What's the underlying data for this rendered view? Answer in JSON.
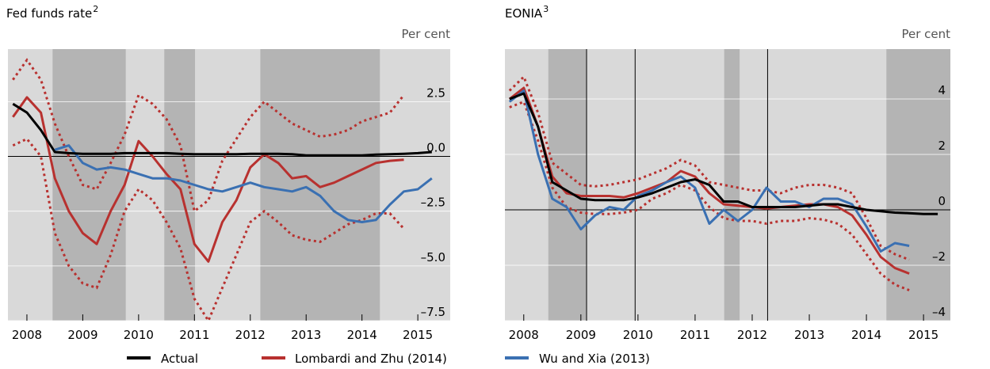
{
  "chart_data": [
    {
      "type": "line",
      "title": "Fed funds rate",
      "title_sup": "2",
      "y_label": "Per cent",
      "xlim": [
        2008.16,
        2016.08
      ],
      "ylim": [
        -7.5,
        4.9
      ],
      "yticks": [
        2.5,
        {
          "value": 0,
          "label": "0.0"
        },
        {
          "value": -2.5,
          "label": "–2.5"
        },
        {
          "value": -5,
          "label": "–5.0"
        },
        {
          "value": -7.5,
          "label": "–7.5"
        }
      ],
      "xticks": [
        {
          "value": 2008.5,
          "label": "2008"
        },
        {
          "value": 2009.5,
          "label": "2009"
        },
        {
          "value": 2010.5,
          "label": "2010"
        },
        {
          "value": 2011.5,
          "label": "2011"
        },
        {
          "value": 2012.5,
          "label": "2012"
        },
        {
          "value": 2013.5,
          "label": "2013"
        },
        {
          "value": 2014.5,
          "label": "2014"
        },
        {
          "value": 2015.5,
          "label": "2015"
        }
      ],
      "shaded": [
        [
          2008.96,
          2010.27
        ],
        [
          2010.96,
          2011.51
        ],
        [
          2012.68,
          2014.82
        ]
      ],
      "x": [
        2008.25,
        2008.5,
        2008.75,
        2009,
        2009.25,
        2009.5,
        2009.75,
        2010,
        2010.25,
        2010.5,
        2010.75,
        2011,
        2011.25,
        2011.5,
        2011.75,
        2012,
        2012.25,
        2012.5,
        2012.75,
        2013,
        2013.25,
        2013.5,
        2013.75,
        2014,
        2014.25,
        2014.5,
        2014.75,
        2015,
        2015.25,
        2015.5,
        2015.75
      ],
      "series": [
        {
          "name": "Actual",
          "color": "#000000",
          "values": [
            2.4,
            2.0,
            1.2,
            0.2,
            0.15,
            0.12,
            0.12,
            0.12,
            0.15,
            0.15,
            0.15,
            0.15,
            0.12,
            0.1,
            0.1,
            0.1,
            0.1,
            0.12,
            0.12,
            0.12,
            0.1,
            0.05,
            0.05,
            0.05,
            0.05,
            0.05,
            0.08,
            0.1,
            0.12,
            0.15,
            0.2
          ]
        },
        {
          "name": "Lombardi and Zhu (2014)",
          "color": "#b8312f",
          "values": [
            1.8,
            2.7,
            2.0,
            -1.0,
            -2.5,
            -3.5,
            -4.0,
            -2.5,
            -1.3,
            0.7,
            0.0,
            -0.8,
            -1.5,
            -4.0,
            -4.8,
            -3.0,
            -2.0,
            -0.5,
            0.1,
            -0.3,
            -1.0,
            -0.9,
            -1.4,
            -1.2,
            -0.9,
            -0.6,
            -0.3,
            -0.2,
            -0.15,
            null,
            null
          ],
          "upper": [
            3.5,
            4.4,
            3.5,
            1.5,
            0.0,
            -1.3,
            -1.5,
            -0.3,
            1.0,
            2.8,
            2.4,
            1.7,
            0.5,
            -2.5,
            -2.0,
            -0.2,
            0.8,
            1.8,
            2.5,
            2.0,
            1.5,
            1.2,
            0.9,
            1.0,
            1.2,
            1.6,
            1.8,
            2.0,
            2.8,
            null,
            null
          ],
          "lower": [
            0.5,
            0.8,
            0.0,
            -3.5,
            -5.0,
            -5.8,
            -6.0,
            -4.5,
            -2.5,
            -1.5,
            -2.0,
            -3.0,
            -4.2,
            -6.5,
            -7.5,
            -6.0,
            -4.5,
            -3.0,
            -2.5,
            -3.0,
            -3.6,
            -3.8,
            -3.9,
            -3.5,
            -3.1,
            -2.9,
            -2.6,
            -2.6,
            -3.3,
            null,
            null
          ]
        },
        {
          "name": "Wu and Xia (2013)",
          "color": "#3a70b2",
          "values": [
            null,
            null,
            null,
            0.3,
            0.5,
            -0.3,
            -0.6,
            -0.5,
            -0.6,
            -0.8,
            -1.0,
            -1.0,
            -1.1,
            -1.3,
            -1.5,
            -1.6,
            -1.4,
            -1.2,
            -1.4,
            -1.5,
            -1.6,
            -1.4,
            -1.8,
            -2.5,
            -2.9,
            -3.0,
            -2.9,
            -2.2,
            -1.6,
            -1.5,
            -1.0
          ]
        }
      ]
    },
    {
      "type": "line",
      "title": "EONIA",
      "title_sup": "3",
      "y_label": "Per cent",
      "xlim": [
        2008.17,
        2015.97
      ],
      "ylim": [
        -4,
        5.8
      ],
      "yticks": [
        4,
        2,
        0,
        {
          "value": -2,
          "label": "–2"
        },
        {
          "value": -4,
          "label": "–4"
        }
      ],
      "xticks": [
        {
          "value": 2008.5,
          "label": "2008"
        },
        {
          "value": 2009.5,
          "label": "2009"
        },
        {
          "value": 2010.5,
          "label": "2010"
        },
        {
          "value": 2011.5,
          "label": "2011"
        },
        {
          "value": 2012.5,
          "label": "2012"
        },
        {
          "value": 2013.5,
          "label": "2013"
        },
        {
          "value": 2014.5,
          "label": "2014"
        },
        {
          "value": 2015.5,
          "label": "2015"
        }
      ],
      "shaded": [
        [
          2008.93,
          2009.6
        ],
        [
          2012.01,
          2012.28
        ],
        [
          2014.85,
          2015.97
        ]
      ],
      "vlines": [
        2009.6,
        2010.45,
        2012.77
      ],
      "x": [
        2008.25,
        2008.5,
        2008.75,
        2009,
        2009.25,
        2009.5,
        2009.75,
        2010,
        2010.25,
        2010.5,
        2010.75,
        2011,
        2011.25,
        2011.5,
        2011.75,
        2012,
        2012.25,
        2012.5,
        2012.75,
        2013,
        2013.25,
        2013.5,
        2013.75,
        2014,
        2014.25,
        2014.5,
        2014.75,
        2015,
        2015.25,
        2015.5,
        2015.75
      ],
      "series": [
        {
          "color": "#000000",
          "values": [
            4.0,
            4.2,
            3.0,
            1.0,
            0.7,
            0.4,
            0.35,
            0.35,
            0.35,
            0.45,
            0.6,
            0.8,
            1.0,
            1.1,
            0.9,
            0.3,
            0.3,
            0.1,
            0.1,
            0.1,
            0.1,
            0.15,
            0.2,
            0.2,
            0.1,
            0.0,
            -0.05,
            -0.1,
            -0.12,
            -0.15,
            -0.15
          ]
        },
        {
          "color": "#b8312f",
          "values": [
            4.0,
            4.4,
            3.0,
            1.2,
            0.6,
            0.5,
            0.5,
            0.5,
            0.45,
            0.6,
            0.8,
            1.0,
            1.4,
            1.2,
            0.6,
            0.2,
            0.15,
            0.1,
            0.05,
            0.1,
            0.15,
            0.2,
            0.2,
            0.1,
            -0.2,
            -0.9,
            -1.7,
            -2.1,
            -2.3,
            null,
            null
          ],
          "upper": [
            4.3,
            4.8,
            3.5,
            1.7,
            1.3,
            0.9,
            0.85,
            0.9,
            1.0,
            1.1,
            1.3,
            1.5,
            1.8,
            1.6,
            1.0,
            0.9,
            0.8,
            0.7,
            0.7,
            0.6,
            0.8,
            0.9,
            0.9,
            0.8,
            0.6,
            -0.3,
            -1.3,
            -1.6,
            -1.8,
            null,
            null
          ],
          "lower": [
            3.7,
            3.9,
            2.5,
            0.8,
            0.1,
            -0.1,
            -0.15,
            -0.15,
            -0.1,
            0.0,
            0.4,
            0.6,
            0.9,
            0.7,
            0.1,
            -0.3,
            -0.4,
            -0.4,
            -0.5,
            -0.4,
            -0.4,
            -0.3,
            -0.35,
            -0.5,
            -0.9,
            -1.6,
            -2.3,
            -2.7,
            -2.9,
            null,
            null
          ]
        },
        {
          "color": "#3a70b2",
          "values": [
            3.9,
            4.3,
            2.0,
            0.4,
            0.1,
            -0.7,
            -0.2,
            0.1,
            0.0,
            0.5,
            0.7,
            1.0,
            1.2,
            0.8,
            -0.5,
            0.0,
            -0.4,
            0.0,
            0.8,
            0.3,
            0.3,
            0.1,
            0.4,
            0.4,
            0.2,
            -0.6,
            -1.5,
            -1.2,
            -1.3,
            null,
            null
          ]
        }
      ]
    }
  ]
}
